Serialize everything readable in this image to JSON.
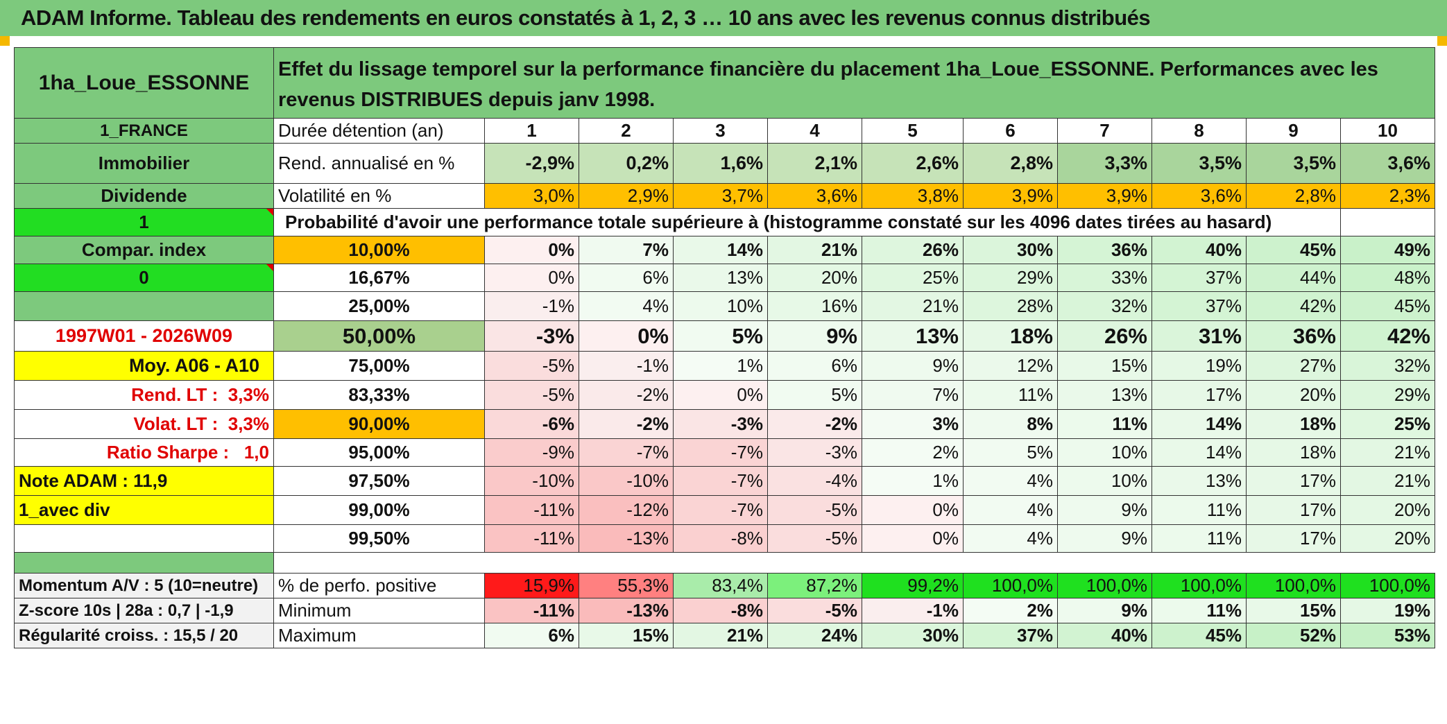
{
  "title": "ADAM Informe. Tableau des rendements en euros constatés à 1, 2, 3 … 10 ans avec les revenus connus distribués",
  "header": {
    "asset": "1ha_Loue_ESSONNE",
    "description": "Effet du lissage temporel sur la performance financière du placement 1ha_Loue_ESSONNE. Performances avec les revenus DISTRIBUES depuis janv 1998."
  },
  "left": {
    "country": "1_FRANCE",
    "category": "Immobilier",
    "type": "Dividende",
    "flag1": "1",
    "compar": "Compar. index",
    "flag0": "0",
    "period": "1997W01 - 2026W09",
    "moy": "Moy. A06 - A10",
    "rend_lt_label": "Rend. LT :",
    "rend_lt_value": "3,3%",
    "volat_lt_label": "Volat. LT :",
    "volat_lt_value": "3,3%",
    "sharpe_label": "Ratio Sharpe :",
    "sharpe_value": "1,0",
    "note": "Note ADAM : 11,9",
    "avec_div": "1_avec div",
    "momentum": "Momentum A/V : 5 (10=neutre)",
    "zscore": "Z-score 10s | 28a : 0,7 | -1,9",
    "regularite": "Régularité croiss. : 15,5 / 20"
  },
  "row_labels": {
    "duration": "Durée détention (an)",
    "rend": "Rend. annualisé en %",
    "volat": "Volatilité en %",
    "proba": "Probabilité d'avoir une performance totale supérieure à (histogramme constaté sur les 4096 dates tirées au hasard)",
    "positive": "% de perfo. positive",
    "minimum": "Minimum",
    "maximum": "Maximum"
  },
  "years": [
    "1",
    "2",
    "3",
    "4",
    "5",
    "6",
    "7",
    "8",
    "9",
    "10"
  ],
  "rend": [
    "-2,9%",
    "0,2%",
    "1,6%",
    "2,1%",
    "2,6%",
    "2,8%",
    "3,3%",
    "3,5%",
    "3,5%",
    "3,6%"
  ],
  "volat": [
    "3,0%",
    "2,9%",
    "3,7%",
    "3,6%",
    "3,8%",
    "3,9%",
    "3,9%",
    "3,6%",
    "2,8%",
    "2,3%"
  ],
  "percentiles": [
    {
      "p": "10,00%",
      "v": [
        "0%",
        "7%",
        "14%",
        "21%",
        "26%",
        "30%",
        "36%",
        "40%",
        "45%",
        "49%"
      ]
    },
    {
      "p": "16,67%",
      "v": [
        "0%",
        "6%",
        "13%",
        "20%",
        "25%",
        "29%",
        "33%",
        "37%",
        "44%",
        "48%"
      ]
    },
    {
      "p": "25,00%",
      "v": [
        "-1%",
        "4%",
        "10%",
        "16%",
        "21%",
        "28%",
        "32%",
        "37%",
        "42%",
        "45%"
      ]
    },
    {
      "p": "50,00%",
      "v": [
        "-3%",
        "0%",
        "5%",
        "9%",
        "13%",
        "18%",
        "26%",
        "31%",
        "36%",
        "42%"
      ]
    },
    {
      "p": "75,00%",
      "v": [
        "-5%",
        "-1%",
        "1%",
        "6%",
        "9%",
        "12%",
        "15%",
        "19%",
        "27%",
        "32%"
      ]
    },
    {
      "p": "83,33%",
      "v": [
        "-5%",
        "-2%",
        "0%",
        "5%",
        "7%",
        "11%",
        "13%",
        "17%",
        "20%",
        "29%"
      ]
    },
    {
      "p": "90,00%",
      "v": [
        "-6%",
        "-2%",
        "-3%",
        "-2%",
        "3%",
        "8%",
        "11%",
        "14%",
        "18%",
        "25%"
      ]
    },
    {
      "p": "95,00%",
      "v": [
        "-9%",
        "-7%",
        "-7%",
        "-3%",
        "2%",
        "5%",
        "10%",
        "14%",
        "18%",
        "21%"
      ]
    },
    {
      "p": "97,50%",
      "v": [
        "-10%",
        "-10%",
        "-7%",
        "-4%",
        "1%",
        "4%",
        "10%",
        "13%",
        "17%",
        "21%"
      ]
    },
    {
      "p": "99,00%",
      "v": [
        "-11%",
        "-12%",
        "-7%",
        "-5%",
        "0%",
        "4%",
        "9%",
        "11%",
        "17%",
        "20%"
      ]
    },
    {
      "p": "99,50%",
      "v": [
        "-11%",
        "-13%",
        "-8%",
        "-5%",
        "0%",
        "4%",
        "9%",
        "11%",
        "17%",
        "20%"
      ]
    }
  ],
  "positive": [
    "15,9%",
    "55,3%",
    "83,4%",
    "87,2%",
    "99,2%",
    "100,0%",
    "100,0%",
    "100,0%",
    "100,0%",
    "100,0%"
  ],
  "minimum": [
    "-11%",
    "-13%",
    "-8%",
    "-5%",
    "-1%",
    "2%",
    "9%",
    "11%",
    "15%",
    "19%"
  ],
  "maximum": [
    "6%",
    "15%",
    "21%",
    "24%",
    "30%",
    "37%",
    "40%",
    "45%",
    "52%",
    "53%"
  ],
  "colors": {
    "header_green": "#7dc97d",
    "volat_orange": "#ffbf00",
    "highlight_yellow": "#ffff00",
    "flag_green": "#22dd22",
    "label_red": "#e00000"
  }
}
